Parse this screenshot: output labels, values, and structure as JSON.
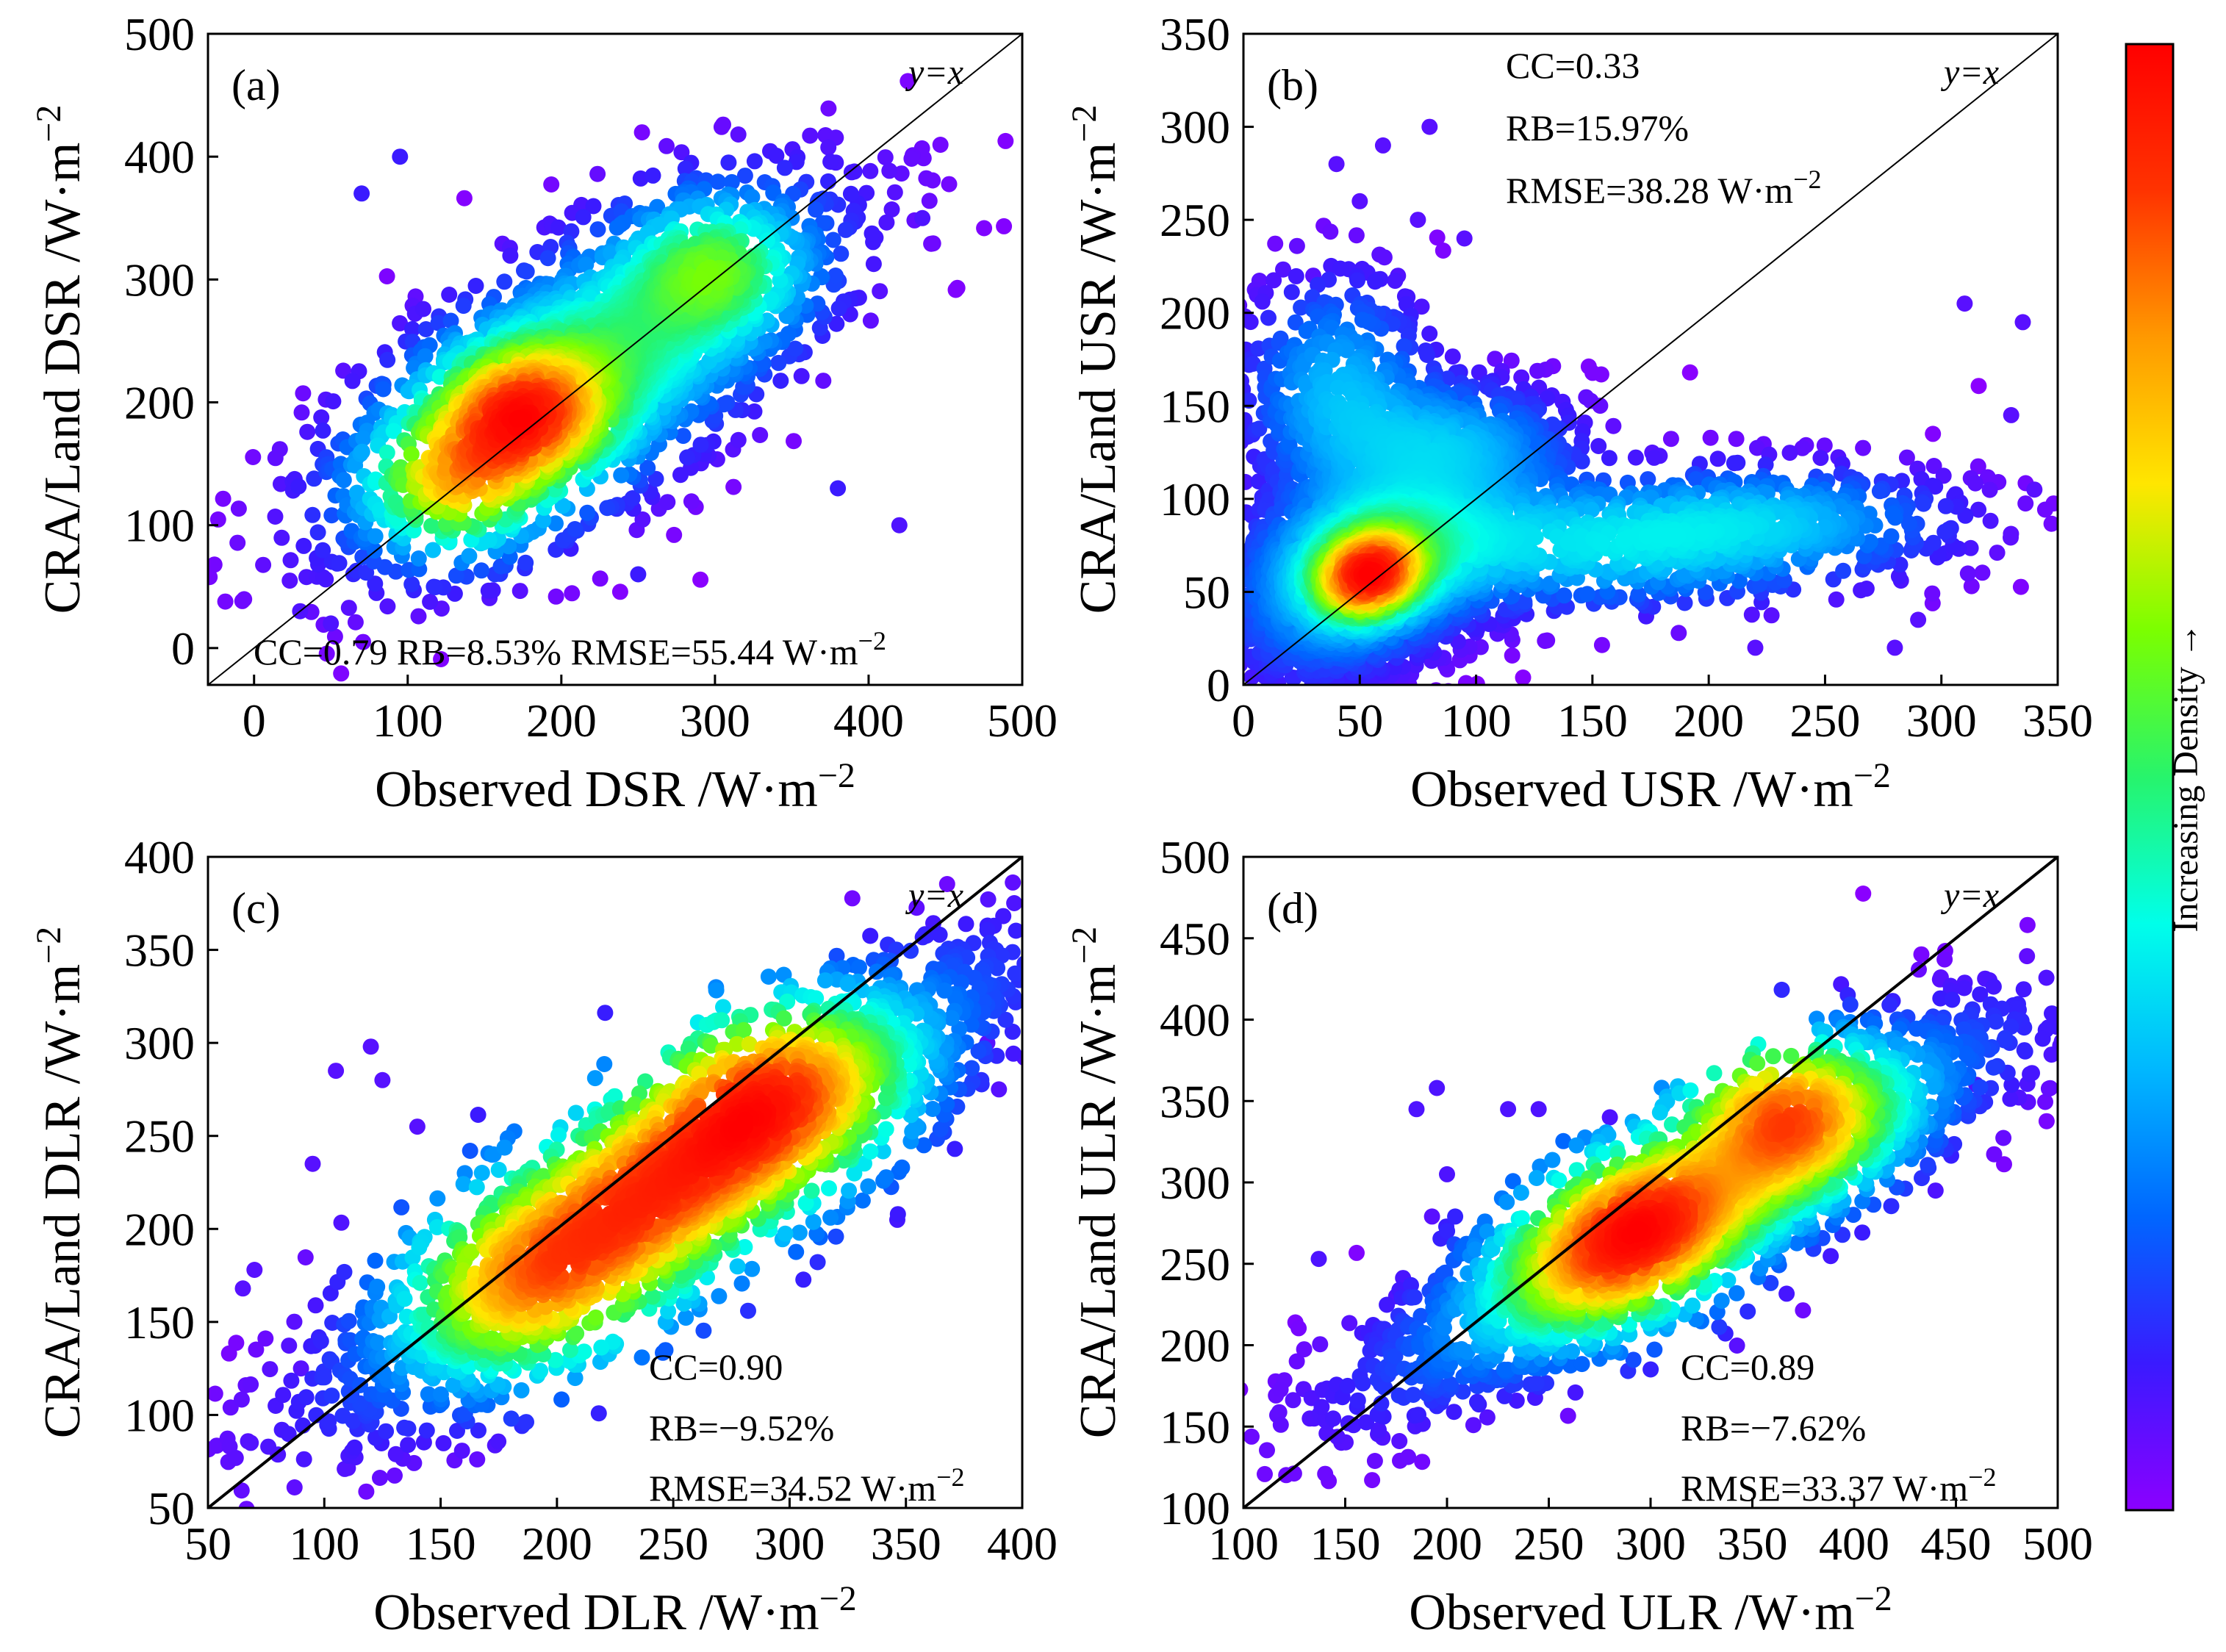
{
  "chart_data": [
    {
      "type": "scatter",
      "panel": "(a)",
      "title": "",
      "xlabel": "Observed DSR /W·m",
      "ylabel": "CRA/Land DSR /W·m",
      "unit_exponent": "−2",
      "xlim": [
        -30,
        500
      ],
      "ylim": [
        -30,
        500
      ],
      "xticks": [
        0,
        100,
        200,
        300,
        400,
        500
      ],
      "yticks": [
        0,
        100,
        200,
        300,
        400,
        500
      ],
      "reference_line": "y=x",
      "stats": {
        "cc": "CC=0.79",
        "rb": "RB=8.53%",
        "rmse": "RMSE=55.44 W·m"
      },
      "stats_layout": "bottom-row",
      "cloud": {
        "cx": 215,
        "cy": 225,
        "major": 125,
        "minor": 55,
        "angle": 42,
        "outer": 1.45,
        "peaks": [
          [
            175,
            190,
            1.0
          ],
          [
            130,
            135,
            0.75
          ],
          [
            300,
            310,
            0.45
          ]
        ]
      },
      "outliers": [
        [
          95,
          400,
          0.15
        ],
        [
          420,
          100,
          0.1
        ],
        [
          435,
          350,
          0.1
        ],
        [
          30,
          30,
          0.1
        ],
        [
          50,
          20,
          0.1
        ],
        [
          250,
          60,
          0.15
        ],
        [
          70,
          370,
          0.15
        ],
        [
          380,
          130,
          0.15
        ]
      ]
    },
    {
      "type": "scatter",
      "panel": "(b)",
      "title": "",
      "xlabel": "Observed USR /W·m",
      "ylabel": "CRA/Land USR /W·m",
      "unit_exponent": "−2",
      "xlim": [
        0,
        350
      ],
      "ylim": [
        0,
        350
      ],
      "xticks": [
        0,
        50,
        100,
        150,
        200,
        250,
        300,
        350
      ],
      "yticks": [
        0,
        50,
        100,
        150,
        200,
        250,
        300,
        350
      ],
      "reference_line": "y=x",
      "stats": {
        "cc": "CC=0.33",
        "rb": "RB=15.97%",
        "rmse": "RMSE=38.28 W·m"
      },
      "stats_layout": "top-stack",
      "cloud": {
        "cx": 55,
        "cy": 65,
        "major": 45,
        "minor": 30,
        "angle": 45,
        "outer": 1.6,
        "peaks": [
          [
            50,
            55,
            1.0
          ],
          [
            60,
            65,
            0.7
          ]
        ]
      },
      "tails": [
        [
          150,
          75,
          80,
          25,
          0.35
        ],
        [
          230,
          90,
          60,
          22,
          0.22
        ],
        [
          40,
          160,
          30,
          45,
          0.28
        ],
        [
          90,
          130,
          40,
          25,
          0.25
        ]
      ],
      "outliers": [
        [
          60,
          290,
          0.1
        ],
        [
          80,
          300,
          0.1
        ],
        [
          50,
          260,
          0.1
        ],
        [
          75,
          250,
          0.1
        ],
        [
          95,
          240,
          0.1
        ],
        [
          310,
          205,
          0.1
        ],
        [
          335,
          195,
          0.1
        ],
        [
          330,
          145,
          0.1
        ],
        [
          290,
          35,
          0.1
        ],
        [
          280,
          20,
          0.1
        ],
        [
          340,
          105,
          0.1
        ],
        [
          220,
          20,
          0.1
        ],
        [
          40,
          280,
          0.1
        ],
        [
          30,
          220,
          0.1
        ]
      ]
    },
    {
      "type": "scatter",
      "panel": "(c)",
      "title": "",
      "xlabel": "Observed DLR /W·m",
      "ylabel": "CRA/Land DLR /W·m",
      "unit_exponent": "−2",
      "xlim": [
        50,
        400
      ],
      "ylim": [
        50,
        400
      ],
      "xticks": [
        50,
        100,
        150,
        200,
        250,
        300,
        350,
        400
      ],
      "yticks": [
        50,
        100,
        150,
        200,
        250,
        300,
        350,
        400
      ],
      "reference_line": "y=x",
      "stats": {
        "cc": "CC=0.90",
        "rb": "RB=−9.52%",
        "rmse": "RMSE=34.52 W·m"
      },
      "stats_layout": "bottom-stack",
      "cloud": {
        "cx": 250,
        "cy": 225,
        "major": 120,
        "minor": 30,
        "angle": 40,
        "outer": 1.5,
        "peaks": [
          [
            185,
            170,
            1.0
          ],
          [
            230,
            210,
            0.85
          ],
          [
            300,
            280,
            0.95
          ],
          [
            270,
            250,
            0.8
          ]
        ]
      },
      "outliers": [
        [
          65,
          168,
          0.1
        ],
        [
          70,
          178,
          0.1
        ],
        [
          105,
          285,
          0.1
        ],
        [
          120,
          298,
          0.1
        ],
        [
          125,
          280,
          0.1
        ],
        [
          95,
          235,
          0.1
        ],
        [
          90,
          125,
          0.1
        ],
        [
          390,
          275,
          0.1
        ],
        [
          385,
          300,
          0.1
        ],
        [
          140,
          255,
          0.1
        ]
      ]
    },
    {
      "type": "scatter",
      "panel": "(d)",
      "title": "",
      "xlabel": "Observed ULR /W·m",
      "ylabel": "CRA/Land ULR /W·m",
      "unit_exponent": "−2",
      "xlim": [
        100,
        500
      ],
      "ylim": [
        100,
        500
      ],
      "xticks": [
        100,
        150,
        200,
        250,
        300,
        350,
        400,
        450,
        500
      ],
      "yticks": [
        100,
        150,
        200,
        250,
        300,
        350,
        400,
        450,
        500
      ],
      "reference_line": "y=x",
      "stats": {
        "cc": "CC=0.89",
        "rb": "RB=−7.62%",
        "rmse": "RMSE=33.37 W·m"
      },
      "stats_layout": "bottom-stack",
      "cloud": {
        "cx": 320,
        "cy": 285,
        "major": 115,
        "minor": 30,
        "angle": 36,
        "outer": 1.5,
        "peaks": [
          [
            365,
            345,
            1.0
          ],
          [
            300,
            280,
            0.75
          ],
          [
            270,
            250,
            0.55
          ]
        ]
      },
      "outliers": [
        [
          137,
          253,
          0.1
        ],
        [
          185,
          345,
          0.1
        ],
        [
          195,
          358,
          0.1
        ],
        [
          230,
          345,
          0.1
        ],
        [
          245,
          345,
          0.1
        ],
        [
          175,
          230,
          0.1
        ],
        [
          200,
          305,
          0.1
        ],
        [
          460,
          360,
          0.1
        ],
        [
          440,
          295,
          0.1
        ],
        [
          280,
          340,
          0.1
        ]
      ]
    }
  ],
  "colorbar": {
    "label": "Increasing Density",
    "arrow": "→",
    "colors": [
      "#8b00ff",
      "#3a1aff",
      "#0066ff",
      "#00b7ff",
      "#00ffea",
      "#27f46c",
      "#7bff00",
      "#ffe600",
      "#ff9900",
      "#ff3300",
      "#ff0000"
    ]
  },
  "reference_label": "y=x"
}
